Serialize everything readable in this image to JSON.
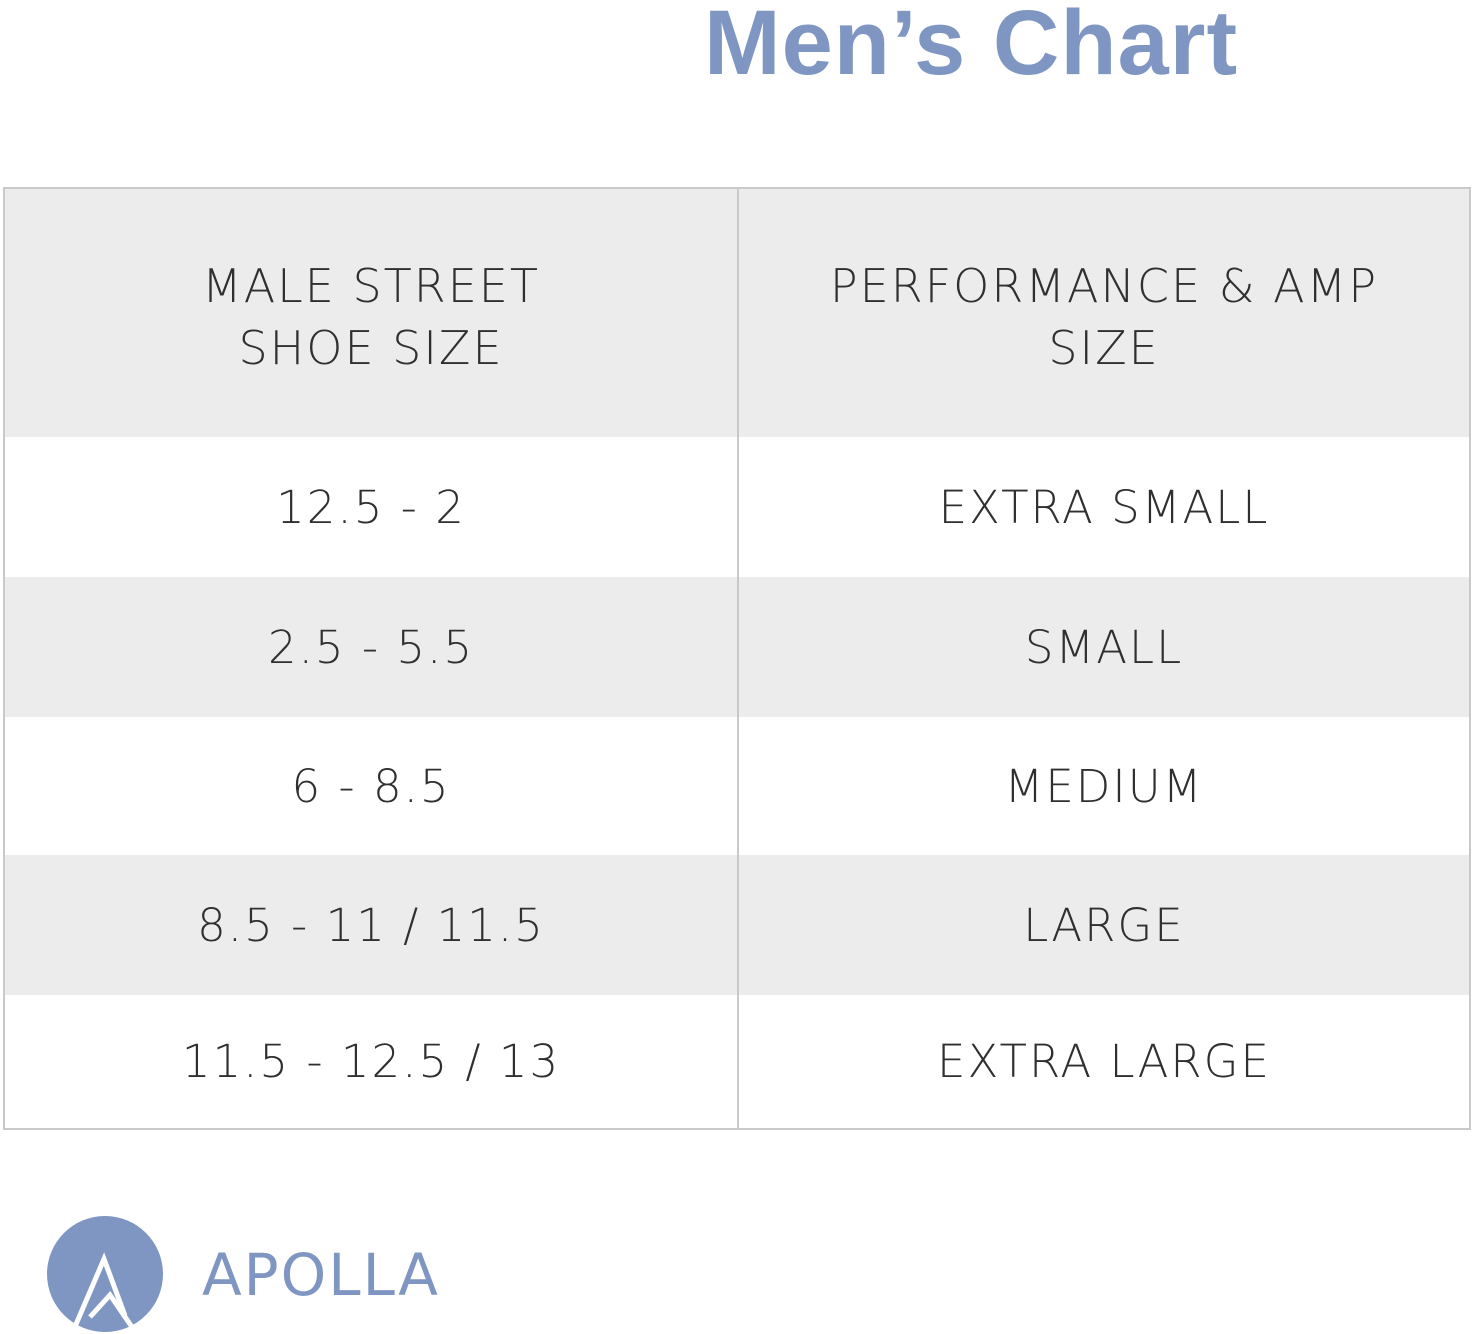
{
  "title": "Men’s Chart",
  "colors": {
    "accent": "#7f96c2",
    "shaded_row": "#ececec",
    "text": "#2f2f2f",
    "border": "#c9c9c9"
  },
  "table": {
    "headers": {
      "col1_line1": "MALE STREET",
      "col1_line2": "SHOE SIZE",
      "col2_line1": "PERFORMANCE & AMP",
      "col2_line2": "SIZE"
    },
    "rows": [
      {
        "street": "12.5 - 2",
        "size": "EXTRA SMALL"
      },
      {
        "street": "2.5 - 5.5",
        "size": "SMALL"
      },
      {
        "street": "6 - 8.5",
        "size": "MEDIUM"
      },
      {
        "street": "8.5 - 11 / 11.5",
        "size": "LARGE"
      },
      {
        "street": "11.5 - 12.5 / 13",
        "size": "EXTRA LARGE"
      }
    ]
  },
  "brand": {
    "name": "APOLLA",
    "icon": "apolla-logo-icon"
  }
}
